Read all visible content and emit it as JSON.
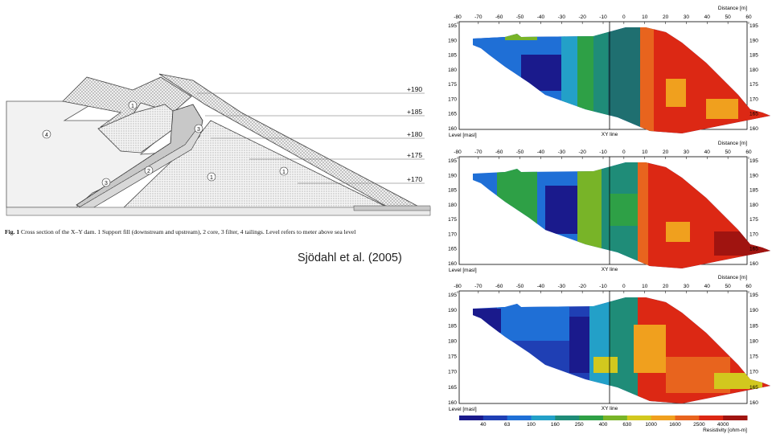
{
  "cross_section": {
    "level_labels": [
      "+190",
      "+185",
      "+180",
      "+175",
      "+170"
    ],
    "zone_markers": [
      "1",
      "1",
      "1",
      "2",
      "3",
      "3",
      "4"
    ],
    "caption_prefix": "Fig. 1",
    "caption_text": "Cross section of the X–Y dam. 1 Support fill (downstream and upstream), 2 core, 3 filter, 4 tailings. Level refers to meter above sea level"
  },
  "credit": "Sjödahl et al. (2005)",
  "panels": [
    {
      "distance_label": "Distance [m]",
      "x_ticks": [
        "-80",
        "-70",
        "-60",
        "-50",
        "-40",
        "-30",
        "-20",
        "-10",
        "0",
        "10",
        "20",
        "30",
        "40",
        "50",
        "60"
      ],
      "y_ticks": [
        "195",
        "190",
        "185",
        "180",
        "175",
        "170",
        "165",
        "160"
      ],
      "level_label": "Level [masl]",
      "xy_label": "XY line"
    },
    {
      "distance_label": "Distance [m]",
      "x_ticks": [
        "-80",
        "-70",
        "-60",
        "-50",
        "-40",
        "-30",
        "-20",
        "-10",
        "0",
        "10",
        "20",
        "30",
        "40",
        "50",
        "60"
      ],
      "y_ticks": [
        "195",
        "190",
        "185",
        "180",
        "175",
        "170",
        "165",
        "160"
      ],
      "level_label": "Level [masl]",
      "xy_label": "XY line"
    },
    {
      "distance_label": "Distance [m]",
      "x_ticks": [
        "-80",
        "-70",
        "-60",
        "-50",
        "-40",
        "-30",
        "-20",
        "-10",
        "0",
        "10",
        "20",
        "30",
        "40",
        "50",
        "60"
      ],
      "y_ticks": [
        "195",
        "190",
        "185",
        "180",
        "175",
        "170",
        "165",
        "160"
      ],
      "level_label": "Level [masl]",
      "xy_label": "XY line"
    }
  ],
  "colorbar": {
    "labels": [
      "40",
      "63",
      "100",
      "160",
      "250",
      "400",
      "630",
      "1000",
      "1600",
      "2500",
      "4000"
    ],
    "unit": "Resistivity [ohm-m]",
    "colors": [
      "#1a1a8c",
      "#1f3fb4",
      "#1f6fd6",
      "#23a0c8",
      "#1f8c78",
      "#2ea046",
      "#78b428",
      "#d2c81e",
      "#f0a01e",
      "#e8641e",
      "#dc2814",
      "#a01410"
    ]
  }
}
